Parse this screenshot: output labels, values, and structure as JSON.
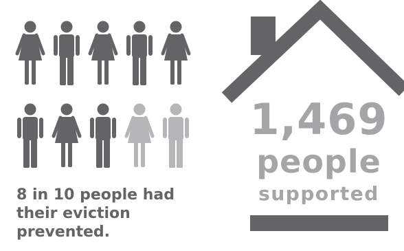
{
  "icons": {
    "total": 10,
    "highlighted": 8,
    "genders": [
      "female",
      "male",
      "female",
      "male",
      "female",
      "male",
      "female",
      "male",
      "female",
      "male"
    ],
    "color_active": "#626465",
    "color_inactive": "#b4b6b7"
  },
  "caption": "8 in 10 people had their eviction prevented.",
  "stat": {
    "number": "1,469",
    "word": "people",
    "label": "supported"
  },
  "colors": {
    "dark": "#626465",
    "light": "#a3a5a6"
  }
}
